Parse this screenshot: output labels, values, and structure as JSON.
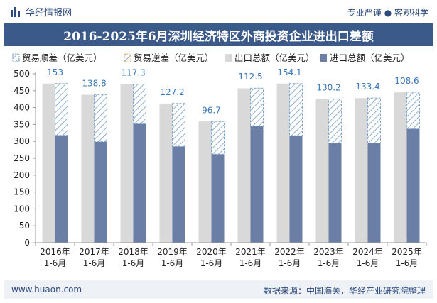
{
  "header": {
    "brand": "华经情报网",
    "slogan": "专业严谨 ● 客观科学"
  },
  "footer": {
    "site": "www.huaon.com",
    "source": "数据来源：中国海关，华经产业研究院整理"
  },
  "colors": {
    "title_bg": "#3b5a8a",
    "export_bar": "#d9d9d9",
    "import_bar": "#6b7fa6",
    "surplus_hatch": "#7fa6c9",
    "label_blue": "#3a78b8"
  },
  "chart_data": {
    "type": "bar",
    "title": "2016-2025年6月深圳经济特区外商投资企业进出口差额",
    "categories": [
      "2016年\n1-6月",
      "2017年\n1-6月",
      "2018年\n1-6月",
      "2019年\n1-6月",
      "2020年\n1-6月",
      "2021年\n1-6月",
      "2022年\n1-6月",
      "2023年\n1-6月",
      "2024年\n1-6月",
      "2025年\n1-6月"
    ],
    "series": [
      {
        "name": "贸易顺差（亿美元）",
        "values": [
          153,
          138.8,
          117.3,
          127.2,
          96.7,
          112.5,
          154.1,
          130.2,
          133.4,
          108.6
        ]
      },
      {
        "name": "贸易逆差（亿美元）",
        "values": [
          0,
          0,
          0,
          0,
          0,
          0,
          0,
          0,
          0,
          0
        ]
      },
      {
        "name": "出口总额（亿美元）",
        "values": [
          471,
          438,
          469,
          412,
          359,
          457,
          471,
          425,
          428,
          445
        ]
      },
      {
        "name": "进口总额（亿美元）",
        "values": [
          318,
          299,
          352,
          285,
          262,
          345,
          317,
          295,
          295,
          337
        ]
      }
    ],
    "ylim": [
      0,
      500
    ],
    "yticks": [
      0,
      50,
      100,
      150,
      200,
      250,
      300,
      350,
      400,
      450,
      500
    ],
    "legend": "top",
    "grid": false
  }
}
